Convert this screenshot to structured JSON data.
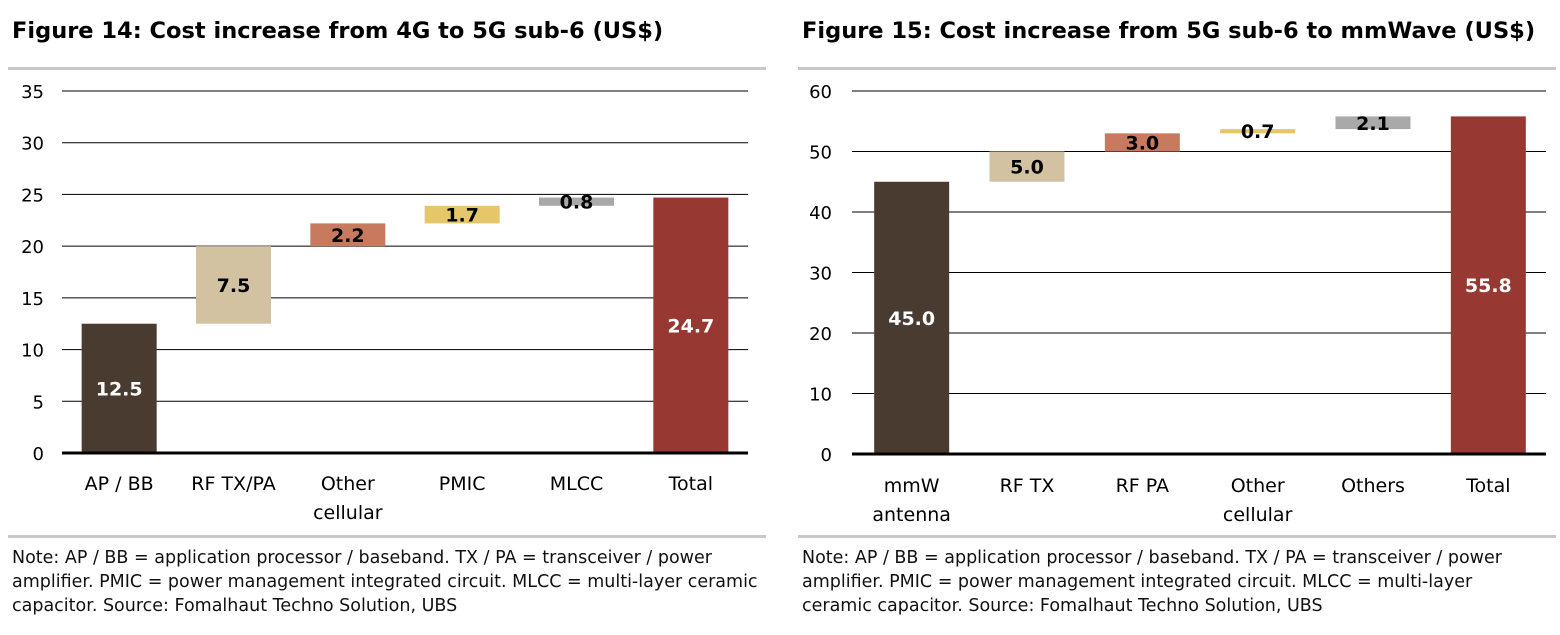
{
  "charts": [
    {
      "title": "Figure 14: Cost increase from 4G to 5G sub-6 (US$)",
      "note": "Note: AP / BB = application processor / baseband. TX / PA = transceiver / power amplifier. PMIC = power management integrated circuit. MLCC = multi-layer ceramic capacitor. Source:  Fomalhaut Techno Solution, UBS"
    },
    {
      "title": "Figure 15: Cost increase from 5G sub-6 to mmWave (US$)",
      "note": "Note: AP / BB = application processor / baseband. TX / PA = transceiver / power amplifier. PMIC = power management integrated circuit. MLCC = multi-layer ceramic capacitor. Source:  Fomalhaut Techno Solution, UBS"
    }
  ],
  "chart_data": [
    {
      "type": "bar",
      "subtype": "waterfall",
      "title": "Figure 14: Cost increase from 4G to 5G sub-6 (US$)",
      "categories": [
        [
          "AP / BB"
        ],
        [
          "RF TX/PA"
        ],
        [
          "Other",
          "cellular"
        ],
        [
          "PMIC"
        ],
        [
          "MLCC"
        ],
        [
          "Total"
        ]
      ],
      "values": [
        12.5,
        7.5,
        2.2,
        1.7,
        0.8,
        24.7
      ],
      "labels": [
        "12.5",
        "7.5",
        "2.2",
        "1.7",
        "0.8",
        "24.7"
      ],
      "bar_kind": [
        "total",
        "delta",
        "delta",
        "delta",
        "delta",
        "total"
      ],
      "colors": [
        "#4a3b30",
        "#d3c2a2",
        "#c87a5e",
        "#e5c66a",
        "#a9a9a9",
        "#973932"
      ],
      "label_colors": [
        "#ffffff",
        "#000000",
        "#000000",
        "#000000",
        "#000000",
        "#ffffff"
      ],
      "ylim": [
        0,
        35
      ],
      "yticks": [
        0,
        5,
        10,
        15,
        20,
        25,
        30,
        35
      ],
      "grid": true,
      "xlabel": "",
      "ylabel": ""
    },
    {
      "type": "bar",
      "subtype": "waterfall",
      "title": "Figure 15: Cost increase from 5G sub-6 to mmWave (US$)",
      "categories": [
        [
          "mmW",
          "antenna"
        ],
        [
          "RF TX"
        ],
        [
          "RF PA"
        ],
        [
          "Other",
          "cellular"
        ],
        [
          "Others"
        ],
        [
          "Total"
        ]
      ],
      "values": [
        45.0,
        5.0,
        3.0,
        0.7,
        2.1,
        55.8
      ],
      "labels": [
        "45.0",
        "5.0",
        "3.0",
        "0.7",
        "2.1",
        "55.8"
      ],
      "bar_kind": [
        "total",
        "delta",
        "delta",
        "delta",
        "delta",
        "total"
      ],
      "colors": [
        "#4a3b30",
        "#d3c2a2",
        "#c87a5e",
        "#e5c66a",
        "#a9a9a9",
        "#973932"
      ],
      "label_colors": [
        "#ffffff",
        "#000000",
        "#000000",
        "#000000",
        "#000000",
        "#ffffff"
      ],
      "ylim": [
        0,
        60
      ],
      "yticks": [
        0,
        10,
        20,
        30,
        40,
        50,
        60
      ],
      "grid": true,
      "xlabel": "",
      "ylabel": ""
    }
  ]
}
